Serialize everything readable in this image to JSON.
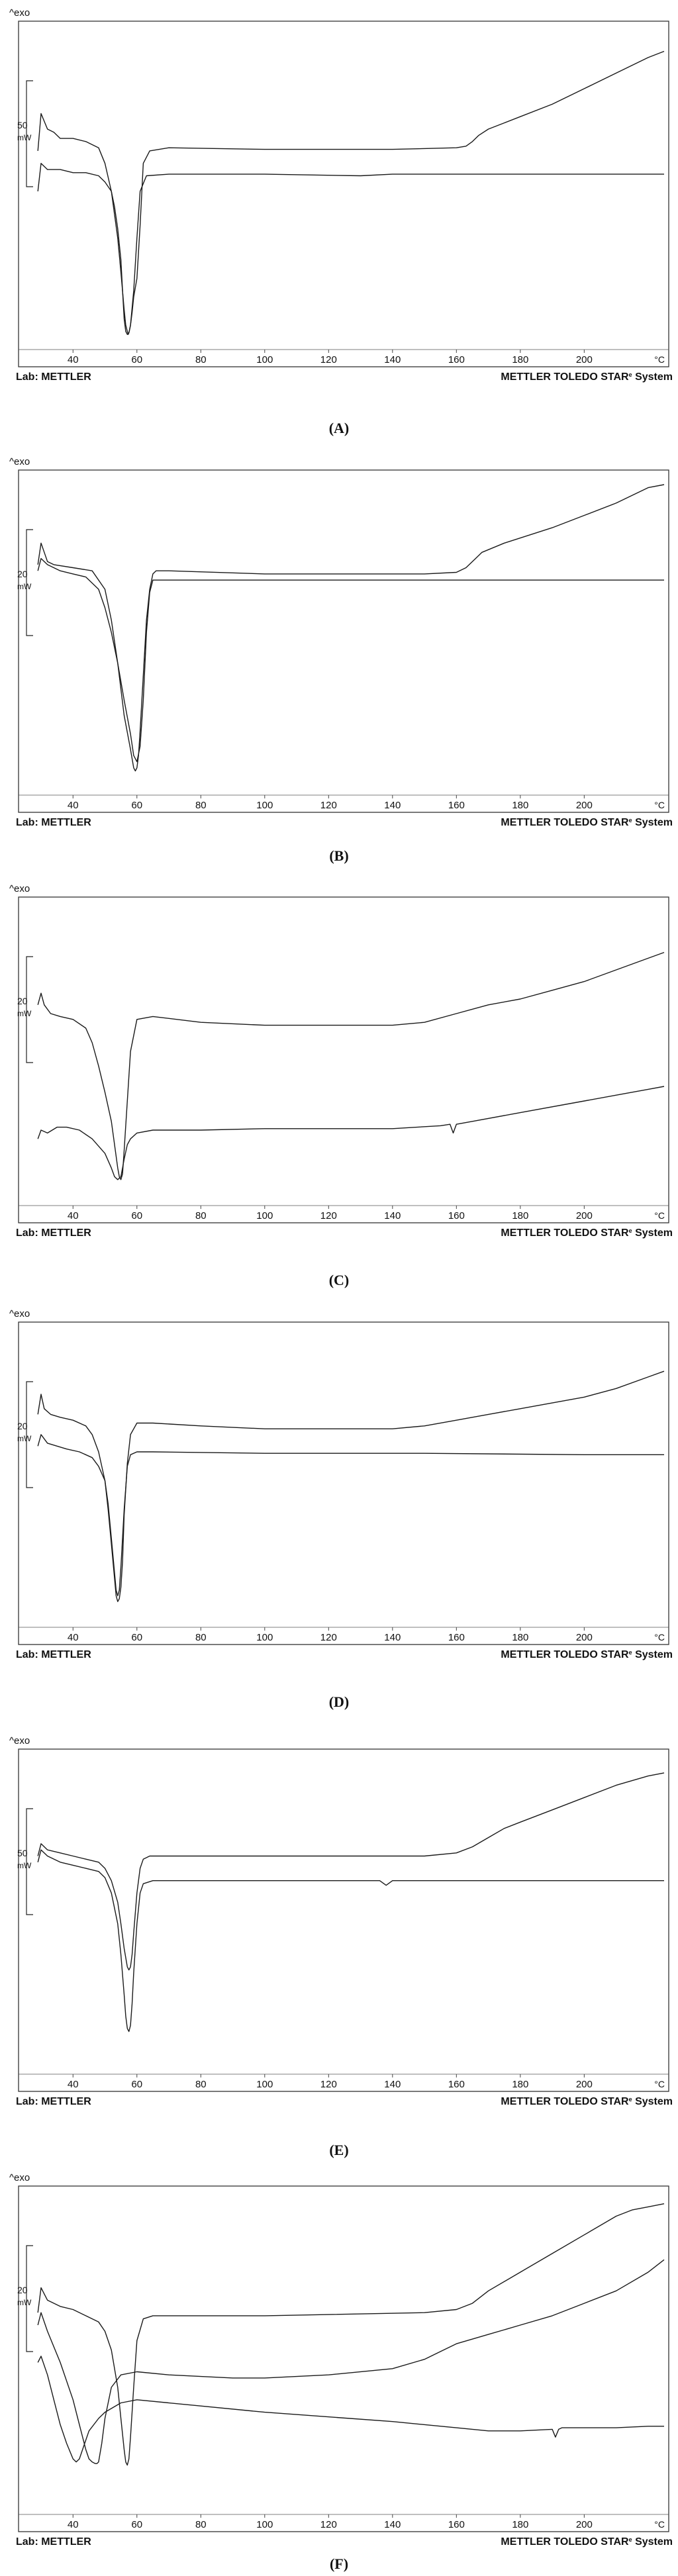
{
  "figure": {
    "captions": [
      "(A)",
      "(B)",
      "(C)",
      "(D)",
      "(E)",
      "(F)"
    ]
  },
  "chart_data": [
    {
      "type": "line",
      "panel": "(A)",
      "y_unit_label": "^exo",
      "scale_number": "50",
      "scale_unit": "mW",
      "x_unit": "°C",
      "lab_label": "Lab: METTLER",
      "system_label": "METTLER TOLEDO STAR",
      "system_label_suffix": "System",
      "xlim": [
        30,
        225
      ],
      "ylim": [
        0,
        100
      ],
      "grid": false,
      "xticks": [
        "40",
        "60",
        "80",
        "100",
        "120",
        "140",
        "160",
        "180",
        "200"
      ],
      "series": [
        {
          "x": [
            29,
            30,
            32,
            34,
            36,
            40,
            44,
            48,
            50,
            52,
            54,
            55,
            56,
            56.5,
            57,
            57.3,
            57.6,
            58,
            58.5,
            59,
            60,
            61,
            62,
            64,
            70,
            100,
            140,
            160,
            163,
            165,
            167,
            170,
            175,
            180,
            190,
            200,
            210,
            220,
            225
          ],
          "y": [
            63,
            75,
            70,
            69,
            67,
            67,
            66,
            64,
            59,
            50,
            35,
            24,
            12,
            7,
            5,
            4,
            5,
            7,
            11,
            16,
            22,
            39,
            59,
            63,
            64,
            63.5,
            63.5,
            64,
            64.5,
            66,
            68,
            70,
            72,
            74,
            78,
            83,
            88,
            93,
            95
          ]
        },
        {
          "x": [
            29,
            30,
            32,
            36,
            40,
            44,
            48,
            50,
            52,
            53,
            54,
            55,
            55.5,
            56,
            56.5,
            57,
            57.5,
            58,
            59,
            60,
            61,
            63,
            70,
            100,
            130,
            140,
            150,
            180,
            200,
            225
          ],
          "y": [
            50,
            59,
            57,
            57,
            56,
            56,
            55,
            53,
            50,
            45,
            38,
            28,
            18,
            9,
            5,
            4,
            4.5,
            7,
            18,
            35,
            50,
            55,
            55.5,
            55.5,
            55,
            55.5,
            55.5,
            55.5,
            55.5,
            55.5
          ]
        }
      ]
    },
    {
      "type": "line",
      "panel": "(B)",
      "y_unit_label": "^exo",
      "scale_number": "20",
      "scale_unit": "mW",
      "x_unit": "°C",
      "lab_label": "Lab: METTLER",
      "system_label": "METTLER TOLEDO STAR",
      "system_label_suffix": "System",
      "xlim": [
        30,
        225
      ],
      "ylim": [
        0,
        100
      ],
      "grid": false,
      "xticks": [
        "40",
        "60",
        "80",
        "100",
        "120",
        "140",
        "160",
        "180",
        "200"
      ],
      "series": [
        {
          "x": [
            29,
            30,
            32,
            34,
            40,
            46,
            50,
            52,
            54,
            56,
            58,
            59,
            59.5,
            60,
            60.5,
            61,
            62,
            63,
            64,
            65,
            66,
            70,
            100,
            150,
            160,
            163,
            166,
            168,
            175,
            190,
            200,
            210,
            220,
            225
          ],
          "y": [
            74,
            81,
            75,
            74,
            73,
            72,
            66,
            56,
            42,
            25,
            14,
            8,
            7,
            8,
            12,
            20,
            38,
            56,
            66,
            71,
            72,
            72,
            71,
            71,
            71.5,
            73,
            76,
            78,
            81,
            86,
            90,
            94,
            99,
            100
          ]
        },
        {
          "x": [
            29,
            30,
            32,
            36,
            40,
            44,
            48,
            50,
            52,
            54,
            56,
            58,
            59,
            60,
            61,
            62,
            63,
            64,
            65,
            70,
            100,
            150,
            200,
            225
          ],
          "y": [
            72,
            76,
            74,
            72,
            71,
            70,
            66,
            60,
            52,
            42,
            30,
            19,
            12,
            10,
            15,
            30,
            52,
            65,
            69,
            69,
            69,
            69,
            69,
            69
          ]
        }
      ]
    },
    {
      "type": "line",
      "panel": "(C)",
      "y_unit_label": "^exo",
      "scale_number": "20",
      "scale_unit": "mW",
      "x_unit": "°C",
      "lab_label": "Lab: METTLER",
      "system_label": "METTLER TOLEDO STAR",
      "system_label_suffix": "System",
      "xlim": [
        30,
        225
      ],
      "ylim": [
        0,
        100
      ],
      "grid": false,
      "xticks": [
        "40",
        "60",
        "80",
        "100",
        "120",
        "140",
        "160",
        "180",
        "200"
      ],
      "series": [
        {
          "x": [
            29,
            30,
            31,
            33,
            36,
            40,
            44,
            46,
            48,
            50,
            52,
            53,
            54,
            54.5,
            55,
            55.5,
            56,
            57,
            58,
            60,
            65,
            80,
            100,
            140,
            150,
            160,
            170,
            180,
            190,
            200,
            210,
            220,
            225
          ],
          "y": [
            68,
            72,
            68,
            65,
            64,
            63,
            60,
            55,
            47,
            38,
            28,
            20,
            12,
            9,
            8,
            10,
            18,
            35,
            52,
            63,
            64,
            62,
            61,
            61,
            62,
            65,
            68,
            70,
            73,
            76,
            80,
            84,
            86
          ]
        },
        {
          "x": [
            29,
            30,
            32,
            35,
            38,
            42,
            46,
            50,
            52,
            53,
            54,
            55,
            56,
            57,
            58,
            60,
            65,
            80,
            100,
            140,
            155,
            158,
            159,
            160,
            165,
            180,
            200,
            220,
            225
          ],
          "y": [
            22,
            25,
            24,
            26,
            26,
            25,
            22,
            17,
            12,
            9,
            8,
            9,
            15,
            20,
            22,
            24,
            25,
            25,
            25.5,
            25.5,
            26.5,
            27,
            24,
            27,
            28,
            31,
            35,
            39,
            40
          ]
        }
      ]
    },
    {
      "type": "line",
      "panel": "(D)",
      "y_unit_label": "^exo",
      "scale_number": "20",
      "scale_unit": "mW",
      "x_unit": "°C",
      "lab_label": "Lab: METTLER",
      "system_label": "METTLER TOLEDO STAR",
      "system_label_suffix": "System",
      "xlim": [
        30,
        225
      ],
      "ylim": [
        0,
        100
      ],
      "grid": false,
      "xticks": [
        "40",
        "60",
        "80",
        "100",
        "120",
        "140",
        "160",
        "180",
        "200"
      ],
      "series": [
        {
          "x": [
            29,
            30,
            31,
            33,
            36,
            40,
            44,
            46,
            48,
            50,
            51,
            52,
            53,
            53.5,
            54,
            54.5,
            55,
            55.5,
            56,
            57,
            58,
            60,
            65,
            80,
            100,
            140,
            150,
            160,
            170,
            180,
            190,
            200,
            210,
            220,
            225
          ],
          "y": [
            73,
            80,
            75,
            73,
            72,
            71,
            69,
            66,
            60,
            50,
            40,
            28,
            16,
            10,
            8,
            9,
            13,
            22,
            38,
            56,
            66,
            70,
            70,
            69,
            68,
            68,
            69,
            71,
            73,
            75,
            77,
            79,
            82,
            86,
            88
          ]
        },
        {
          "x": [
            29,
            30,
            32,
            35,
            38,
            42,
            46,
            48,
            50,
            51,
            52,
            53,
            53.5,
            54,
            54.5,
            55,
            56,
            57,
            58,
            60,
            65,
            100,
            150,
            200,
            225
          ],
          "y": [
            62,
            66,
            63,
            62,
            61,
            60,
            58,
            55,
            50,
            42,
            30,
            18,
            12,
            10,
            12,
            20,
            40,
            55,
            59,
            60,
            60,
            59.5,
            59.5,
            59,
            59
          ]
        }
      ]
    },
    {
      "type": "line",
      "panel": "(E)",
      "y_unit_label": "^exo",
      "scale_number": "50",
      "scale_unit": "mW",
      "x_unit": "°C",
      "lab_label": "Lab: METTLER",
      "system_label": "METTLER TOLEDO STAR",
      "system_label_suffix": "System",
      "xlim": [
        30,
        225
      ],
      "ylim": [
        0,
        100
      ],
      "grid": false,
      "xticks": [
        "40",
        "60",
        "80",
        "100",
        "120",
        "140",
        "160",
        "180",
        "200"
      ],
      "series": [
        {
          "x": [
            29,
            30,
            32,
            36,
            40,
            44,
            48,
            50,
            52,
            54,
            55,
            56,
            57,
            57.5,
            58,
            58.5,
            59,
            60,
            61,
            62,
            64,
            70,
            100,
            150,
            160,
            165,
            170,
            175,
            180,
            190,
            200,
            210,
            220,
            225
          ],
          "y": [
            70,
            74,
            72,
            71,
            70,
            69,
            68,
            66,
            62,
            55,
            48,
            40,
            34,
            33,
            34,
            38,
            45,
            58,
            66,
            69,
            70,
            70,
            70,
            70,
            71,
            73,
            76,
            79,
            81,
            85,
            89,
            93,
            96,
            97
          ]
        },
        {
          "x": [
            29,
            30,
            32,
            36,
            40,
            44,
            48,
            50,
            52,
            54,
            55,
            56,
            56.5,
            57,
            57.5,
            58,
            58.5,
            59,
            60,
            61,
            62,
            65,
            100,
            130,
            136,
            138,
            140,
            150,
            200,
            225
          ],
          "y": [
            68,
            72,
            70,
            68,
            67,
            66,
            65,
            63,
            58,
            48,
            38,
            25,
            18,
            14,
            13,
            15,
            22,
            32,
            48,
            58,
            61,
            62,
            62,
            62,
            62,
            60.5,
            62,
            62,
            62,
            62
          ]
        }
      ]
    },
    {
      "type": "line",
      "panel": "(F)",
      "y_unit_label": "^exo",
      "scale_number": "20",
      "scale_unit": "mW",
      "x_unit": "°C",
      "lab_label": "Lab: METTLER",
      "system_label": "METTLER TOLEDO STAR",
      "system_label_suffix": "System",
      "xlim": [
        30,
        225
      ],
      "ylim": [
        0,
        100
      ],
      "grid": false,
      "xticks": [
        "40",
        "60",
        "80",
        "100",
        "120",
        "140",
        "160",
        "180",
        "200"
      ],
      "series": [
        {
          "x": [
            29,
            30,
            32,
            36,
            40,
            44,
            48,
            50,
            52,
            54,
            55,
            56,
            56.5,
            57,
            57.5,
            58,
            59,
            60,
            62,
            65,
            80,
            100,
            150,
            160,
            165,
            170,
            180,
            190,
            200,
            210,
            215,
            220,
            225
          ],
          "y": [
            64,
            72,
            68,
            66,
            65,
            63,
            61,
            58,
            52,
            40,
            30,
            20,
            16,
            15,
            17,
            24,
            40,
            55,
            62,
            63,
            63,
            63,
            64,
            65,
            67,
            71,
            77,
            83,
            89,
            95,
            97,
            98,
            99
          ]
        },
        {
          "x": [
            29,
            30,
            32,
            36,
            40,
            42,
            44,
            45,
            46,
            47,
            47.5,
            48,
            49,
            50,
            52,
            55,
            60,
            70,
            90,
            100,
            120,
            140,
            150,
            160,
            170,
            180,
            190,
            200,
            210,
            220,
            225
          ],
          "y": [
            60,
            64,
            58,
            48,
            36,
            28,
            20,
            17,
            16,
            15.5,
            15.5,
            16,
            22,
            30,
            40,
            44,
            45,
            44,
            43,
            43,
            44,
            46,
            49,
            54,
            57,
            60,
            63,
            67,
            71,
            77,
            81
          ]
        },
        {
          "x": [
            29,
            30,
            32,
            34,
            36,
            38,
            40,
            41,
            42,
            43,
            45,
            48,
            50,
            55,
            60,
            80,
            100,
            140,
            160,
            170,
            180,
            190,
            191,
            192,
            193,
            200,
            210,
            220,
            225
          ],
          "y": [
            48,
            50,
            44,
            36,
            28,
            22,
            17,
            16,
            17,
            20,
            26,
            30,
            32,
            35,
            36,
            34,
            32,
            29,
            27,
            26,
            26,
            26.5,
            24,
            26.5,
            27,
            27,
            27,
            27.5,
            27.5
          ]
        }
      ]
    }
  ]
}
